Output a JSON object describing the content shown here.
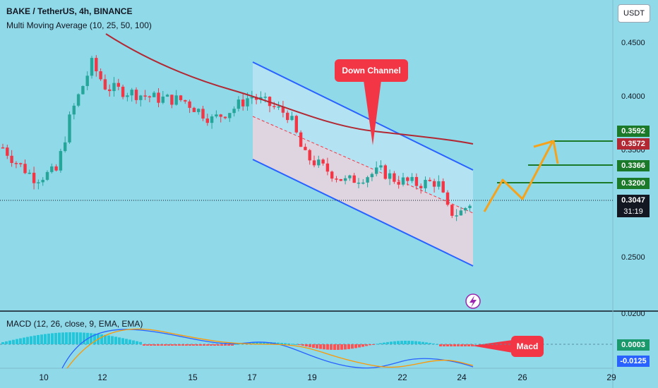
{
  "header": {
    "symbol_line": "BAKE / TetherUS, 4h, BINANCE",
    "indicator_line": "Multi Moving Average (10, 25, 50, 100)",
    "macd_line": "MACD (12, 26, close, 9, EMA, EMA)",
    "currency_button": "USDT"
  },
  "price_axis": {
    "ticks": [
      "0.4500",
      "0.4000",
      "0.3500",
      "0.2500"
    ],
    "macd_ticks": [
      "0.0200"
    ]
  },
  "time_axis": {
    "ticks": [
      "10",
      "12",
      "15",
      "17",
      "19",
      "22",
      "24",
      "26",
      "29"
    ]
  },
  "price_tags": {
    "level_3592": "0.3592",
    "ma_3572": "0.3572",
    "level_3366": "0.3366",
    "level_3200": "0.3200",
    "last_price": "0.3047",
    "countdown": "31:19",
    "macd_value": "0.0003",
    "signal_value": "-0.0125"
  },
  "annotations": {
    "down_channel": "Down Channel",
    "macd_label": "Macd"
  },
  "colors": {
    "background": "#8fd9e8",
    "up_candle": "#26a69a",
    "down_candle": "#f23645",
    "ma_line": "#b22833",
    "channel_line": "#2962ff",
    "projection": "#f7a21b",
    "resistance": "#1b7a2a"
  },
  "chart_data": {
    "type": "candlestick",
    "title": "BAKE / TetherUS, 4h, BINANCE",
    "x": [
      "10",
      "12",
      "15",
      "17",
      "19",
      "22",
      "24",
      "26",
      "29"
    ],
    "ylim": [
      0.22,
      0.47
    ],
    "overlays": [
      "Multi Moving Average (10, 25, 50, 100)",
      "Down Channel"
    ],
    "levels": [
      0.3592,
      0.3366,
      0.32
    ],
    "last_price": 0.3047,
    "macd": {
      "macd": 0.0003,
      "signal": -0.0125
    }
  }
}
